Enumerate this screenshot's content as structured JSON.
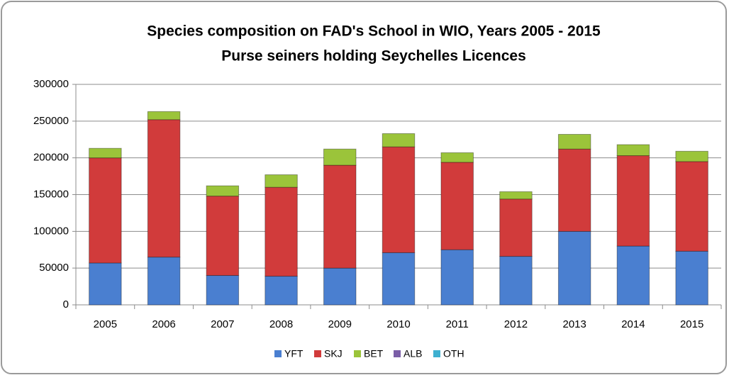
{
  "chart_data": {
    "type": "stacked_bar",
    "title": "Species composition on FAD's School in WIO,  Years 2005 - 2015",
    "subtitle": "Purse seiners holding  Seychelles Licences",
    "categories": [
      "2005",
      "2006",
      "2007",
      "2008",
      "2009",
      "2010",
      "2011",
      "2012",
      "2013",
      "2014",
      "2015"
    ],
    "series": [
      {
        "name": "YFT",
        "color": "#4a7fd0",
        "values": [
          57000,
          65000,
          40000,
          39000,
          50000,
          71000,
          75000,
          66000,
          100000,
          80000,
          73000
        ]
      },
      {
        "name": "SKJ",
        "color": "#d13b3b",
        "values": [
          143000,
          187000,
          108000,
          121000,
          140000,
          144000,
          119000,
          78000,
          112000,
          123000,
          122000
        ]
      },
      {
        "name": "BET",
        "color": "#9bc43a",
        "values": [
          13000,
          11000,
          14000,
          17000,
          22000,
          18000,
          13000,
          10000,
          20000,
          15000,
          14000
        ]
      },
      {
        "name": "ALB",
        "color": "#7b5ea7",
        "values": [
          0,
          0,
          0,
          0,
          0,
          0,
          0,
          0,
          0,
          0,
          0
        ]
      },
      {
        "name": "OTH",
        "color": "#3fb0d0",
        "values": [
          0,
          0,
          0,
          0,
          0,
          0,
          0,
          0,
          0,
          0,
          0
        ]
      }
    ],
    "ylim": [
      0,
      300000
    ],
    "yticks": [
      0,
      50000,
      100000,
      150000,
      200000,
      250000,
      300000
    ],
    "grid": true,
    "legend": "bottom"
  }
}
